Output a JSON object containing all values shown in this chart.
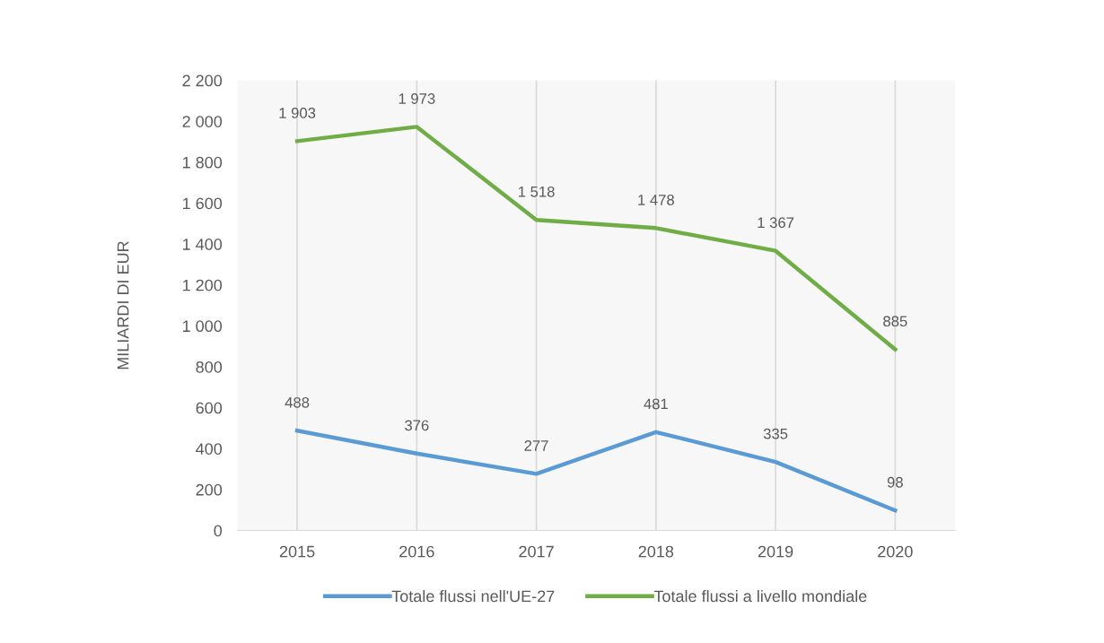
{
  "chart_data": {
    "type": "line",
    "ylabel": "MILIARDI DI EUR",
    "categories": [
      "2015",
      "2016",
      "2017",
      "2018",
      "2019",
      "2020"
    ],
    "series": [
      {
        "name": "Totale flussi nell'UE-27",
        "color": "#5b9bd5",
        "values": [
          488,
          376,
          277,
          481,
          335,
          98
        ],
        "value_labels": [
          "488",
          "376",
          "277",
          "481",
          "335",
          "98"
        ]
      },
      {
        "name": "Totale flussi a livello mondiale",
        "color": "#70ad47",
        "values": [
          1903,
          1973,
          1518,
          1478,
          1367,
          885
        ],
        "value_labels": [
          "1 903",
          "1 973",
          "1 518",
          "1 478",
          "1 367",
          "885"
        ]
      }
    ],
    "ylim": [
      0,
      2200
    ],
    "yticks": [
      0,
      200,
      400,
      600,
      800,
      {
        "value": 1000,
        "label": "1 000"
      },
      {
        "value": 1200,
        "label": "1 200"
      },
      {
        "value": 1400,
        "label": "1 400"
      },
      {
        "value": 1600,
        "label": "1 600"
      },
      {
        "value": 1800,
        "label": "1 800"
      },
      {
        "value": 2000,
        "label": "2 000"
      },
      {
        "value": 2200,
        "label": "2 200"
      }
    ],
    "grid": "x",
    "legend": "bottom",
    "marker": "none",
    "line_style": "solid"
  }
}
